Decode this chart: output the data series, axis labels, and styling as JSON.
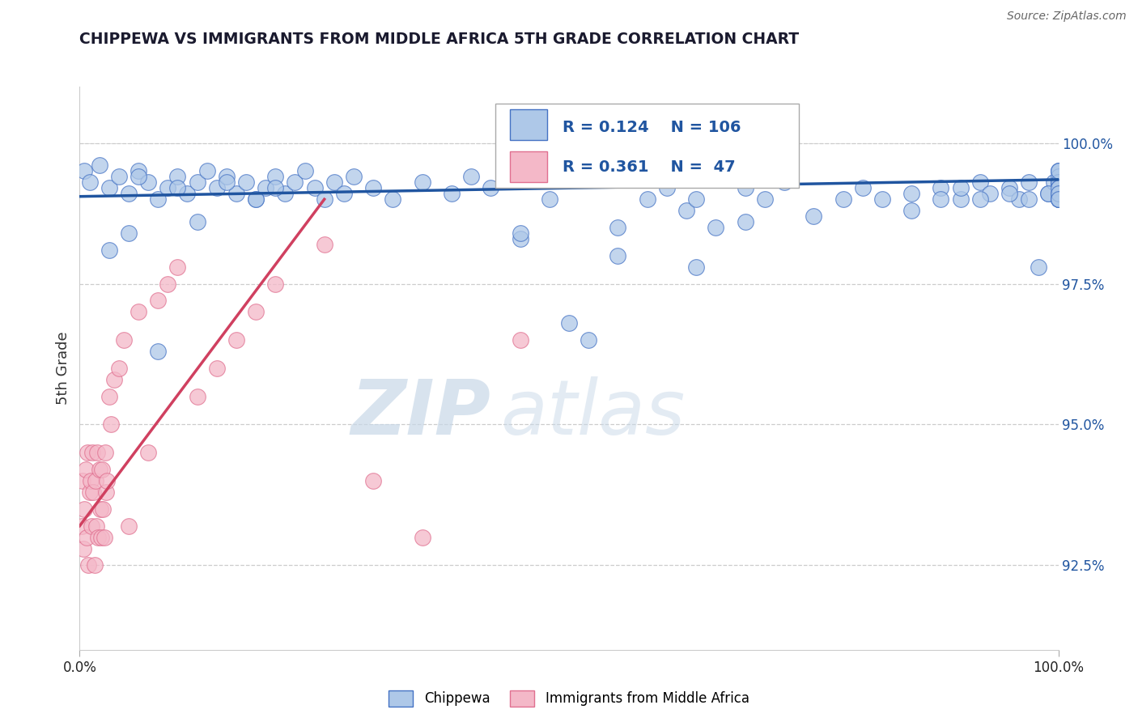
{
  "title": "CHIPPEWA VS IMMIGRANTS FROM MIDDLE AFRICA 5TH GRADE CORRELATION CHART",
  "source": "Source: ZipAtlas.com",
  "ylabel": "5th Grade",
  "watermark_zip": "ZIP",
  "watermark_atlas": "atlas",
  "blue_color": "#aec8e8",
  "pink_color": "#f4b8c8",
  "blue_edge_color": "#4472c4",
  "pink_edge_color": "#e07090",
  "blue_line_color": "#2055a0",
  "pink_line_color": "#d04060",
  "right_yticks": [
    92.5,
    95.0,
    97.5,
    100.0
  ],
  "right_ytick_labels": [
    "92.5%",
    "95.0%",
    "97.5%",
    "100.0%"
  ],
  "xlim": [
    0.0,
    100.0
  ],
  "ylim": [
    91.0,
    101.0
  ],
  "blue_trend_x": [
    0.0,
    100.0
  ],
  "blue_trend_y": [
    99.05,
    99.35
  ],
  "pink_trend_x": [
    0.0,
    25.0
  ],
  "pink_trend_y": [
    93.2,
    99.0
  ],
  "blue_scatter_x": [
    0.5,
    1.0,
    2.0,
    3.0,
    4.0,
    5.0,
    6.0,
    7.0,
    8.0,
    9.0,
    10.0,
    11.0,
    12.0,
    13.0,
    14.0,
    15.0,
    16.0,
    17.0,
    18.0,
    19.0,
    20.0,
    21.0,
    22.0,
    23.0,
    24.0,
    25.0,
    26.0,
    27.0,
    28.0,
    30.0,
    32.0,
    35.0,
    38.0,
    40.0,
    42.0,
    45.0,
    48.0,
    50.0,
    52.0,
    55.0,
    58.0,
    60.0,
    62.0,
    63.0,
    65.0,
    68.0,
    70.0,
    72.0,
    75.0,
    78.0,
    80.0,
    82.0,
    85.0,
    88.0,
    90.0,
    92.0,
    93.0,
    95.0,
    96.0,
    97.0,
    98.0,
    99.0,
    99.5,
    100.0,
    100.0,
    100.0,
    100.0,
    100.0,
    100.0,
    100.0,
    100.0,
    100.0,
    100.0,
    100.0,
    100.0,
    100.0,
    100.0,
    100.0,
    100.0,
    100.0,
    3.0,
    5.0,
    6.0,
    8.0,
    10.0,
    12.0,
    15.0,
    18.0,
    20.0,
    45.0,
    55.0,
    63.0,
    68.0,
    85.0,
    88.0,
    90.0,
    92.0,
    95.0,
    97.0,
    99.0,
    100.0,
    100.0,
    100.0,
    100.0,
    100.0,
    100.0
  ],
  "blue_scatter_y": [
    99.5,
    99.3,
    99.6,
    99.2,
    99.4,
    99.1,
    99.5,
    99.3,
    99.0,
    99.2,
    99.4,
    99.1,
    99.3,
    99.5,
    99.2,
    99.4,
    99.1,
    99.3,
    99.0,
    99.2,
    99.4,
    99.1,
    99.3,
    99.5,
    99.2,
    99.0,
    99.3,
    99.1,
    99.4,
    99.2,
    99.0,
    99.3,
    99.1,
    99.4,
    99.2,
    98.3,
    99.0,
    96.8,
    96.5,
    98.5,
    99.0,
    99.2,
    98.8,
    99.0,
    98.5,
    99.2,
    99.0,
    99.3,
    98.7,
    99.0,
    99.2,
    99.0,
    99.1,
    99.2,
    99.0,
    99.3,
    99.1,
    99.2,
    99.0,
    99.3,
    97.8,
    99.1,
    99.3,
    99.2,
    99.0,
    99.5,
    99.3,
    99.1,
    99.5,
    99.3,
    99.0,
    99.2,
    99.3,
    99.1,
    99.4,
    99.0,
    99.3,
    99.1,
    99.5,
    99.2,
    98.1,
    98.4,
    99.4,
    96.3,
    99.2,
    98.6,
    99.3,
    99.0,
    99.2,
    98.4,
    98.0,
    97.8,
    98.6,
    98.8,
    99.0,
    99.2,
    99.0,
    99.1,
    99.0,
    99.1,
    99.0,
    99.1,
    99.2,
    99.0,
    99.1,
    99.0
  ],
  "pink_scatter_x": [
    0.2,
    0.3,
    0.4,
    0.5,
    0.6,
    0.7,
    0.8,
    0.9,
    1.0,
    1.1,
    1.2,
    1.3,
    1.4,
    1.5,
    1.6,
    1.7,
    1.8,
    1.9,
    2.0,
    2.1,
    2.2,
    2.3,
    2.4,
    2.5,
    2.6,
    2.7,
    2.8,
    3.0,
    3.2,
    3.5,
    4.0,
    4.5,
    5.0,
    6.0,
    7.0,
    8.0,
    9.0,
    10.0,
    12.0,
    14.0,
    16.0,
    18.0,
    20.0,
    25.0,
    30.0,
    35.0,
    45.0
  ],
  "pink_scatter_y": [
    93.2,
    94.0,
    92.8,
    93.5,
    94.2,
    93.0,
    94.5,
    92.5,
    93.8,
    94.0,
    93.2,
    94.5,
    93.8,
    92.5,
    94.0,
    93.2,
    94.5,
    93.0,
    94.2,
    93.5,
    93.0,
    94.2,
    93.5,
    93.0,
    94.5,
    93.8,
    94.0,
    95.5,
    95.0,
    95.8,
    96.0,
    96.5,
    93.2,
    97.0,
    94.5,
    97.2,
    97.5,
    97.8,
    95.5,
    96.0,
    96.5,
    97.0,
    97.5,
    98.2,
    94.0,
    93.0,
    96.5
  ]
}
